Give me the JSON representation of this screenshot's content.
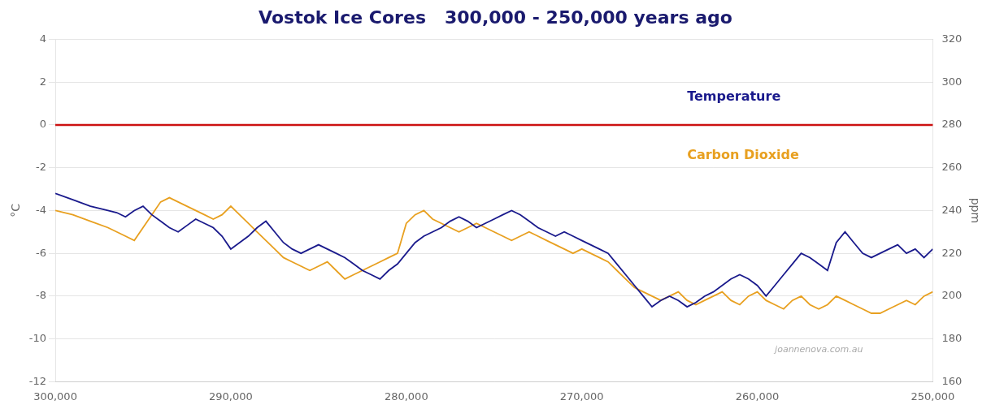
{
  "chart_data": {
    "type": "line",
    "title": "Vostok Ice Cores   300,000 - 250,000 years ago",
    "ylabel": "°C",
    "y2label": "ppm",
    "x": [
      300000,
      299000,
      298000,
      297000,
      296500,
      296000,
      295500,
      295000,
      294500,
      294000,
      293500,
      293000,
      292500,
      292000,
      291500,
      291000,
      290500,
      290000,
      289500,
      289000,
      288500,
      288000,
      287500,
      287000,
      286500,
      286000,
      285500,
      285000,
      284500,
      284000,
      283500,
      283000,
      282500,
      282000,
      281500,
      281000,
      280500,
      280000,
      279500,
      279000,
      278500,
      278000,
      277500,
      277000,
      276500,
      276000,
      275500,
      275000,
      274500,
      274000,
      273500,
      273000,
      272500,
      272000,
      271500,
      271000,
      270500,
      270000,
      269500,
      269000,
      268500,
      268000,
      267500,
      267000,
      266500,
      266000,
      265500,
      265000,
      264500,
      264000,
      263500,
      263000,
      262500,
      262000,
      261500,
      261000,
      260500,
      260000,
      259500,
      259000,
      258500,
      258000,
      257500,
      257000,
      256500,
      256000,
      255500,
      255000,
      254500,
      254000,
      253500,
      253000,
      252500,
      252000,
      251500,
      251000,
      250500,
      250000
    ],
    "series": [
      {
        "name": "Temperature",
        "color": "#1a1a8c",
        "axis": "y",
        "values": [
          -3.2,
          -3.5,
          -3.8,
          -4.0,
          -4.1,
          -4.3,
          -4.0,
          -3.8,
          -4.2,
          -4.5,
          -4.8,
          -5.0,
          -4.7,
          -4.4,
          -4.6,
          -4.8,
          -5.2,
          -5.8,
          -5.5,
          -5.2,
          -4.8,
          -4.5,
          -5.0,
          -5.5,
          -5.8,
          -6.0,
          -5.8,
          -5.6,
          -5.8,
          -6.0,
          -6.2,
          -6.5,
          -6.8,
          -7.0,
          -7.2,
          -6.8,
          -6.5,
          -6.0,
          -5.5,
          -5.2,
          -5.0,
          -4.8,
          -4.5,
          -4.3,
          -4.5,
          -4.8,
          -4.6,
          -4.4,
          -4.2,
          -4.0,
          -4.2,
          -4.5,
          -4.8,
          -5.0,
          -5.2,
          -5.0,
          -5.2,
          -5.4,
          -5.6,
          -5.8,
          -6.0,
          -6.5,
          -7.0,
          -7.5,
          -8.0,
          -8.5,
          -8.2,
          -8.0,
          -8.2,
          -8.5,
          -8.3,
          -8.0,
          -7.8,
          -7.5,
          -7.2,
          -7.0,
          -7.2,
          -7.5,
          -8.0,
          -7.5,
          -7.0,
          -6.5,
          -6.0,
          -6.2,
          -6.5,
          -6.8,
          -5.5,
          -5.0,
          -5.5,
          -6.0,
          -6.2,
          -6.0,
          -5.8,
          -5.6,
          -6.0,
          -5.8,
          -6.2,
          -5.8
        ]
      },
      {
        "name": "Carbon Dioxide",
        "color": "#e8a020",
        "axis": "y2",
        "values": [
          240,
          238,
          235,
          232,
          230,
          228,
          226,
          232,
          238,
          244,
          246,
          244,
          242,
          240,
          238,
          236,
          238,
          242,
          238,
          234,
          230,
          226,
          222,
          218,
          216,
          214,
          212,
          214,
          216,
          212,
          208,
          210,
          212,
          214,
          216,
          218,
          220,
          234,
          238,
          240,
          236,
          234,
          232,
          230,
          232,
          234,
          232,
          230,
          228,
          226,
          228,
          230,
          228,
          226,
          224,
          222,
          220,
          222,
          220,
          218,
          216,
          212,
          208,
          204,
          202,
          200,
          198,
          200,
          202,
          198,
          196,
          198,
          200,
          202,
          198,
          196,
          200,
          202,
          198,
          196,
          194,
          198,
          200,
          196,
          194,
          196,
          200,
          198,
          196,
          194,
          192,
          192,
          194,
          196,
          198,
          196,
          200,
          202
        ]
      }
    ],
    "xlim": [
      300000,
      250000
    ],
    "xticks": [
      {
        "value": 300000,
        "label": "300,000"
      },
      {
        "value": 290000,
        "label": "290,000"
      },
      {
        "value": 280000,
        "label": "280,000"
      },
      {
        "value": 270000,
        "label": "270,000"
      },
      {
        "value": 260000,
        "label": "260,000"
      },
      {
        "value": 250000,
        "label": "250,000"
      }
    ],
    "ylim": [
      -12,
      4
    ],
    "yticks": [
      -12,
      -10,
      -8,
      -6,
      -4,
      -2,
      0,
      2,
      4
    ],
    "y2lim": [
      160,
      320
    ],
    "y2ticks": [
      160,
      180,
      200,
      220,
      240,
      260,
      280,
      300,
      320
    ],
    "grid": true,
    "reference_lines": [
      {
        "axis": "y",
        "value": 0,
        "color": "#cc1111"
      }
    ],
    "annotations": [
      {
        "text": "joannenova.com.au",
        "color": "#aaaaaa"
      }
    ]
  }
}
